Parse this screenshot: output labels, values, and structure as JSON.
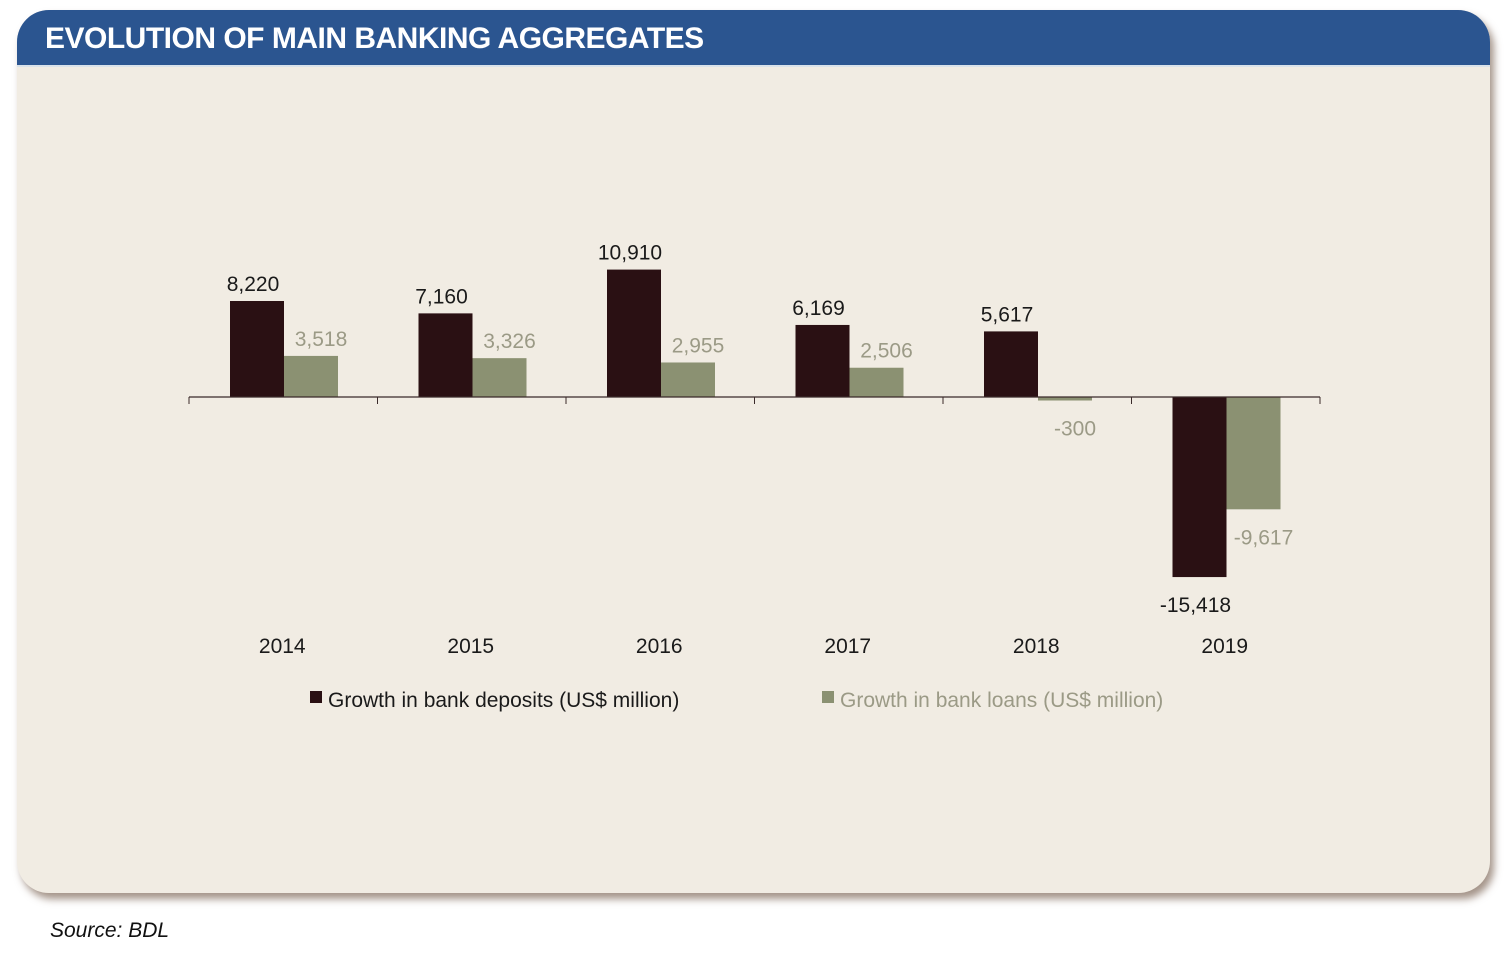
{
  "title": "EVOLUTION OF MAIN BANKING AGGREGATES",
  "source": "Source: BDL",
  "chart_data": {
    "type": "bar",
    "title": "EVOLUTION OF MAIN BANKING AGGREGATES",
    "categories": [
      "2014",
      "2015",
      "2016",
      "2017",
      "2018",
      "2019"
    ],
    "series": [
      {
        "name": "Growth in bank deposits (US$ million)",
        "values": [
          8220,
          7160,
          10910,
          6169,
          5617,
          -15418
        ],
        "labels": [
          "8,220",
          "7,160",
          "10,910",
          "6,169",
          "5,617",
          "-15,418"
        ],
        "color": "#2a1013",
        "label_color": "#1a1a1a"
      },
      {
        "name": "Growth in bank loans (US$ million)",
        "values": [
          3518,
          3326,
          2955,
          2506,
          -300,
          -9617
        ],
        "labels": [
          "3,518",
          "3,326",
          "2,955",
          "2,506",
          "-300",
          "-9,617"
        ],
        "color": "#8b9172",
        "label_color": "#9b9a86"
      }
    ],
    "ylim": [
      -16000,
      12000
    ],
    "grid": false,
    "legend": "bottom",
    "xlabel": "",
    "ylabel": ""
  }
}
